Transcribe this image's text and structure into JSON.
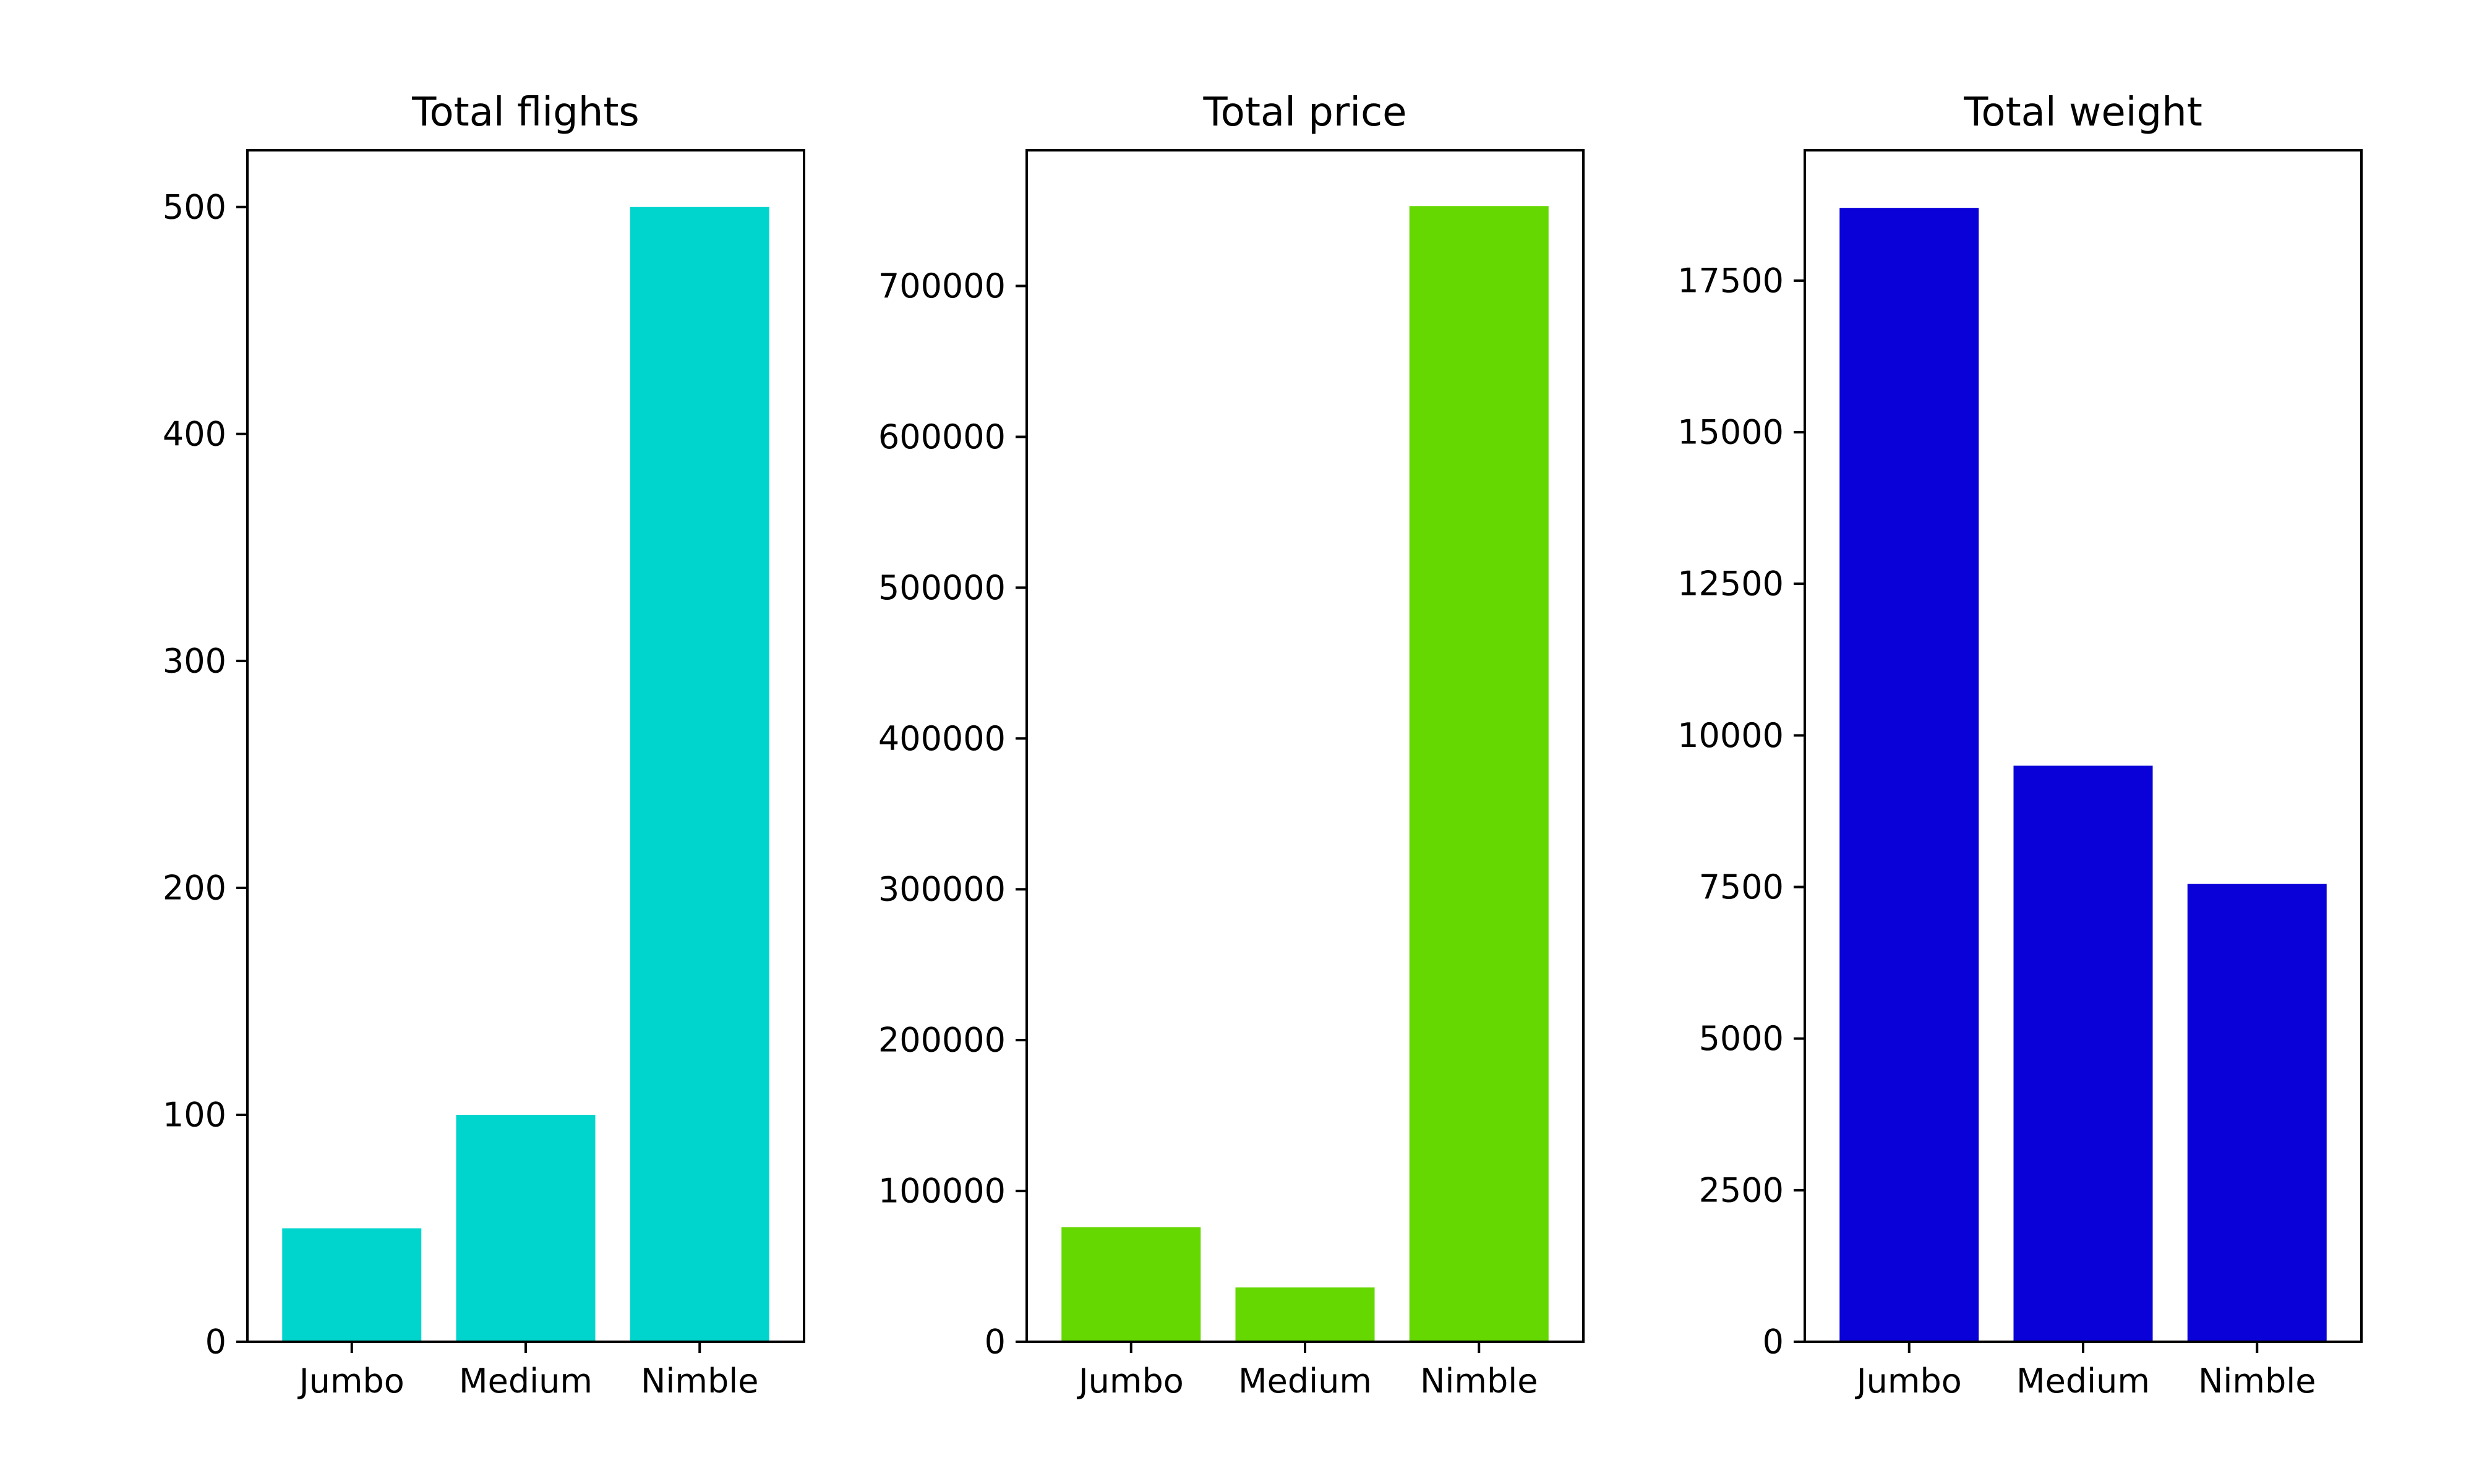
{
  "chart_data": [
    {
      "type": "bar",
      "title": "Total flights",
      "xlabel": "",
      "ylabel": "",
      "categories": [
        "Jumbo",
        "Medium",
        "Nimble"
      ],
      "values": [
        50,
        100,
        500
      ],
      "ylim": [
        0,
        525
      ],
      "yticks": [
        0,
        100,
        200,
        300,
        400,
        500
      ],
      "ytick_labels": [
        "0",
        "100",
        "200",
        "300",
        "400",
        "500"
      ],
      "color": "#00d5cd",
      "grid": false
    },
    {
      "type": "bar",
      "title": "Total price",
      "xlabel": "",
      "ylabel": "",
      "categories": [
        "Jumbo",
        "Medium",
        "Nimble"
      ],
      "values": [
        76000,
        36000,
        753000
      ],
      "ylim": [
        0,
        790000
      ],
      "yticks": [
        0,
        100000,
        200000,
        300000,
        400000,
        500000,
        600000,
        700000
      ],
      "ytick_labels": [
        "0",
        "100000",
        "200000",
        "300000",
        "400000",
        "500000",
        "600000",
        "700000"
      ],
      "color": "#64d800",
      "grid": false
    },
    {
      "type": "bar",
      "title": "Total weight",
      "xlabel": "",
      "ylabel": "",
      "categories": [
        "Jumbo",
        "Medium",
        "Nimble"
      ],
      "values": [
        18700,
        9500,
        7550
      ],
      "ylim": [
        0,
        19650
      ],
      "yticks": [
        0,
        2500,
        5000,
        7500,
        10000,
        12500,
        15000,
        17500
      ],
      "ytick_labels": [
        "0",
        "2500",
        "5000",
        "7500",
        "10000",
        "12500",
        "15000",
        "17500"
      ],
      "color": "#0a00d8",
      "grid": false
    }
  ]
}
